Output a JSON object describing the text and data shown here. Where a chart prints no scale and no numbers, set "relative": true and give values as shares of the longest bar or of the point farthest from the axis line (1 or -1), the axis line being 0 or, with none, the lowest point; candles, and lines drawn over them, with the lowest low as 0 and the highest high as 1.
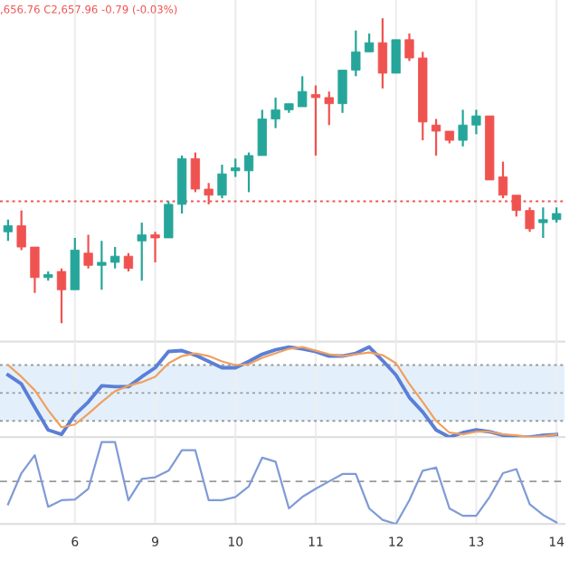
{
  "chart_data": [
    {
      "type": "candlestick",
      "relative": true,
      "grid": "x",
      "tick_labels": false,
      "annotations": [
        ",656.76 C2,657.96 -0.79 (-0.03%)"
      ],
      "categories": [
        null,
        null,
        null,
        null,
        null,
        "6",
        null,
        null,
        null,
        null,
        null,
        "9",
        null,
        null,
        null,
        null,
        null,
        "10",
        null,
        null,
        null,
        null,
        null,
        "11",
        null,
        null,
        null,
        null,
        null,
        "12",
        null,
        null,
        null,
        null,
        null,
        "13",
        null,
        null,
        null,
        null,
        null,
        "14"
      ],
      "ohlc": [
        [
          0.3,
          0.34,
          0.27,
          0.32
        ],
        [
          0.32,
          0.37,
          0.24,
          0.25
        ],
        [
          0.25,
          0.25,
          0.1,
          0.15
        ],
        [
          0.15,
          0.17,
          0.14,
          0.16
        ],
        [
          0.17,
          0.18,
          0,
          0.11
        ],
        [
          0.11,
          0.28,
          0.11,
          0.24
        ],
        [
          0.23,
          0.29,
          0.18,
          0.19
        ],
        [
          0.19,
          0.27,
          0.11,
          0.2
        ],
        [
          0.2,
          0.25,
          0.18,
          0.22
        ],
        [
          0.22,
          0.23,
          0.17,
          0.18
        ],
        [
          0.27,
          0.33,
          0.14,
          0.29
        ],
        [
          0.29,
          0.3,
          0.2,
          0.28
        ],
        [
          0.28,
          0.4,
          0.28,
          0.39
        ],
        [
          0.39,
          0.55,
          0.36,
          0.54
        ],
        [
          0.54,
          0.56,
          0.43,
          0.44
        ],
        [
          0.44,
          0.46,
          0.39,
          0.42
        ],
        [
          0.42,
          0.52,
          0.41,
          0.49
        ],
        [
          0.5,
          0.54,
          0.48,
          0.51
        ],
        [
          0.5,
          0.56,
          0.43,
          0.55
        ],
        [
          0.55,
          0.7,
          0.55,
          0.67
        ],
        [
          0.67,
          0.74,
          0.64,
          0.7
        ],
        [
          0.7,
          0.72,
          0.69,
          0.72
        ],
        [
          0.71,
          0.81,
          0.71,
          0.76
        ],
        [
          0.75,
          0.78,
          0.55,
          0.74
        ],
        [
          0.74,
          0.76,
          0.65,
          0.72
        ],
        [
          0.72,
          0.83,
          0.69,
          0.83
        ],
        [
          0.83,
          0.96,
          0.81,
          0.89
        ],
        [
          0.89,
          0.95,
          0.89,
          0.92
        ],
        [
          0.92,
          1.0,
          0.77,
          0.82
        ],
        [
          0.82,
          0.93,
          0.82,
          0.93
        ],
        [
          0.93,
          0.95,
          0.86,
          0.87
        ],
        [
          0.87,
          0.89,
          0.6,
          0.66
        ],
        [
          0.65,
          0.67,
          0.55,
          0.63
        ],
        [
          0.63,
          0.63,
          0.59,
          0.6
        ],
        [
          0.6,
          0.7,
          0.58,
          0.65
        ],
        [
          0.65,
          0.7,
          0.62,
          0.68
        ],
        [
          0.68,
          0.68,
          0.47,
          0.47
        ],
        [
          0.48,
          0.53,
          0.41,
          0.42
        ],
        [
          0.42,
          0.42,
          0.35,
          0.37
        ],
        [
          0.37,
          0.38,
          0.3,
          0.31
        ],
        [
          0.33,
          0.38,
          0.28,
          0.34
        ],
        [
          0.34,
          0.38,
          0.33,
          0.36
        ]
      ],
      "colors": [
        "#26a69a",
        "#ef5350",
        "#ef5350",
        "#26a69a",
        "#ef5350",
        "#26a69a",
        "#ef5350",
        "#26a69a",
        "#26a69a",
        "#ef5350",
        "#26a69a",
        "#ef5350",
        "#26a69a",
        "#26a69a",
        "#ef5350",
        "#ef5350",
        "#26a69a",
        "#26a69a",
        "#26a69a",
        "#26a69a",
        "#26a69a",
        "#26a69a",
        "#26a69a",
        "#ef5350",
        "#ef5350",
        "#26a69a",
        "#26a69a",
        "#26a69a",
        "#ef5350",
        "#26a69a",
        "#ef5350",
        "#ef5350",
        "#ef5350",
        "#ef5350",
        "#26a69a",
        "#26a69a",
        "#ef5350",
        "#ef5350",
        "#ef5350",
        "#ef5350",
        "#26a69a",
        "#26a69a"
      ],
      "ref_lines": [
        {
          "axis": "y",
          "value": 0.4,
          "color": "#ef5350",
          "line_style": "dotted"
        }
      ]
    },
    {
      "type": "line",
      "relative": true,
      "grid": "x",
      "tick_labels": false,
      "categories": [
        null,
        null,
        null,
        null,
        null,
        "6",
        null,
        null,
        null,
        null,
        null,
        "9",
        null,
        null,
        null,
        null,
        null,
        "10",
        null,
        null,
        null,
        null,
        null,
        "11",
        null,
        null,
        null,
        null,
        null,
        "12",
        null,
        null,
        null,
        null,
        null,
        "13",
        null,
        null,
        null,
        null,
        null,
        "14"
      ],
      "series": [
        {
          "color": "#5b7fd6",
          "values": [
            0.69,
            0.59,
            0.33,
            0.08,
            0.03,
            0.25,
            0.39,
            0.57,
            0.56,
            0.56,
            0.67,
            0.77,
            0.95,
            0.96,
            0.91,
            0.84,
            0.77,
            0.77,
            0.84,
            0.92,
            0.97,
            1.0,
            0.98,
            0.95,
            0.9,
            0.9,
            0.93,
            1.0,
            0.85,
            0.69,
            0.44,
            0.28,
            0.08,
            0,
            0.05,
            0.08,
            0.06,
            0.02,
            0,
            0,
            0.02,
            0.03
          ]
        },
        {
          "color": "#f0a060",
          "values": [
            0.8,
            0.67,
            0.52,
            0.3,
            0.11,
            0.14,
            0.26,
            0.39,
            0.51,
            0.57,
            0.61,
            0.67,
            0.82,
            0.9,
            0.93,
            0.9,
            0.84,
            0.8,
            0.81,
            0.88,
            0.93,
            0.98,
            1.0,
            0.96,
            0.92,
            0.9,
            0.92,
            0.94,
            0.91,
            0.82,
            0.59,
            0.39,
            0.18,
            0.05,
            0.03,
            0.06,
            0.06,
            0.03,
            0.02,
            0,
            0.01,
            0.03
          ]
        }
      ],
      "bands": [
        {
          "axis": "y",
          "from": 0.18,
          "to": 0.8,
          "color": "#e3f0fb"
        }
      ],
      "ref_lines": [
        {
          "axis": "y",
          "value": 0.18,
          "color": "#9a9a9a",
          "line_style": "dotted"
        },
        {
          "axis": "y",
          "value": 0.49,
          "color": "#9a9a9a",
          "line_style": "dotted"
        },
        {
          "axis": "y",
          "value": 0.8,
          "color": "#9a9a9a",
          "line_style": "dotted"
        }
      ]
    },
    {
      "type": "line",
      "relative": true,
      "grid": "x",
      "tick_labels": "x",
      "categories": [
        null,
        null,
        null,
        null,
        null,
        "6",
        null,
        null,
        null,
        null,
        null,
        "9",
        null,
        null,
        null,
        null,
        null,
        "10",
        null,
        null,
        null,
        null,
        null,
        "11",
        null,
        null,
        null,
        null,
        null,
        "12",
        null,
        null,
        null,
        null,
        null,
        "13",
        null,
        null,
        null,
        null,
        null,
        "14"
      ],
      "series": [
        {
          "color": "#7f9bd6",
          "values": [
            0.24,
            0.62,
            0.84,
            0.21,
            0.29,
            0.3,
            0.43,
            1.0,
            1.0,
            0.29,
            0.55,
            0.57,
            0.65,
            0.9,
            0.9,
            0.29,
            0.29,
            0.33,
            0.46,
            0.81,
            0.76,
            0.19,
            0.33,
            0.43,
            0.52,
            0.61,
            0.61,
            0.19,
            0.05,
            0,
            0.29,
            0.65,
            0.69,
            0.19,
            0.1,
            0.1,
            0.33,
            0.62,
            0.67,
            0.24,
            0.11,
            0.02
          ]
        }
      ],
      "ref_lines": [
        {
          "axis": "y",
          "value": 0.52,
          "color": "#9a9a9a",
          "line_style": "dashed"
        }
      ]
    }
  ]
}
